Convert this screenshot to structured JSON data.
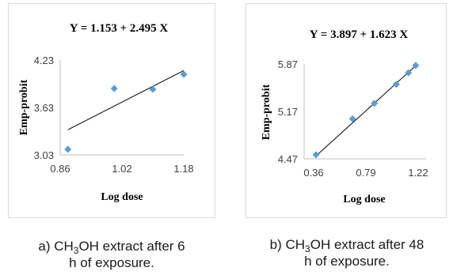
{
  "chart_data": [
    {
      "type": "scatter",
      "title": "Y = 1.153 + 2.495 X",
      "xlabel": "Log dose",
      "ylabel": "Emp-probit",
      "xlim": [
        0.86,
        1.18
      ],
      "ylim": [
        3.03,
        4.23
      ],
      "xticks": [
        "0.86",
        "1.02",
        "1.18"
      ],
      "yticks": [
        "3.03",
        "3.63",
        "4.23"
      ],
      "series": [
        {
          "marker": "diamond",
          "color": "#5b9bd5",
          "x": [
            0.88,
            1.0,
            1.1,
            1.18
          ],
          "y": [
            3.1,
            3.87,
            3.86,
            4.05
          ]
        }
      ],
      "trendline": {
        "intercept": 1.153,
        "slope": 2.495,
        "color": "#000000"
      },
      "grid": false
    },
    {
      "type": "scatter",
      "title": "Y = 3.897 + 1.623 X",
      "xlabel": "Log dose",
      "ylabel": "Emp-probit",
      "xlim": [
        0.36,
        1.22
      ],
      "ylim": [
        4.47,
        5.87
      ],
      "xticks": [
        "0.36",
        "0.79",
        "1.22"
      ],
      "yticks": [
        "4.47",
        "5.17",
        "5.87"
      ],
      "series": [
        {
          "marker": "diamond",
          "color": "#5b9bd5",
          "x": [
            0.38,
            0.68,
            0.86,
            1.04,
            1.14,
            1.2
          ],
          "y": [
            4.53,
            5.06,
            5.29,
            5.57,
            5.74,
            5.85
          ]
        }
      ],
      "trendline": {
        "intercept": 3.897,
        "slope": 1.623,
        "color": "#000000"
      },
      "grid": false
    }
  ],
  "captions": [
    {
      "pre": "a) CH",
      "sub": "3",
      "post": "OH extract after 6",
      "line2": "h of exposure."
    },
    {
      "pre": "b) CH",
      "sub": "3",
      "post": "OH extract after 48",
      "line2": "h of exposure."
    }
  ]
}
